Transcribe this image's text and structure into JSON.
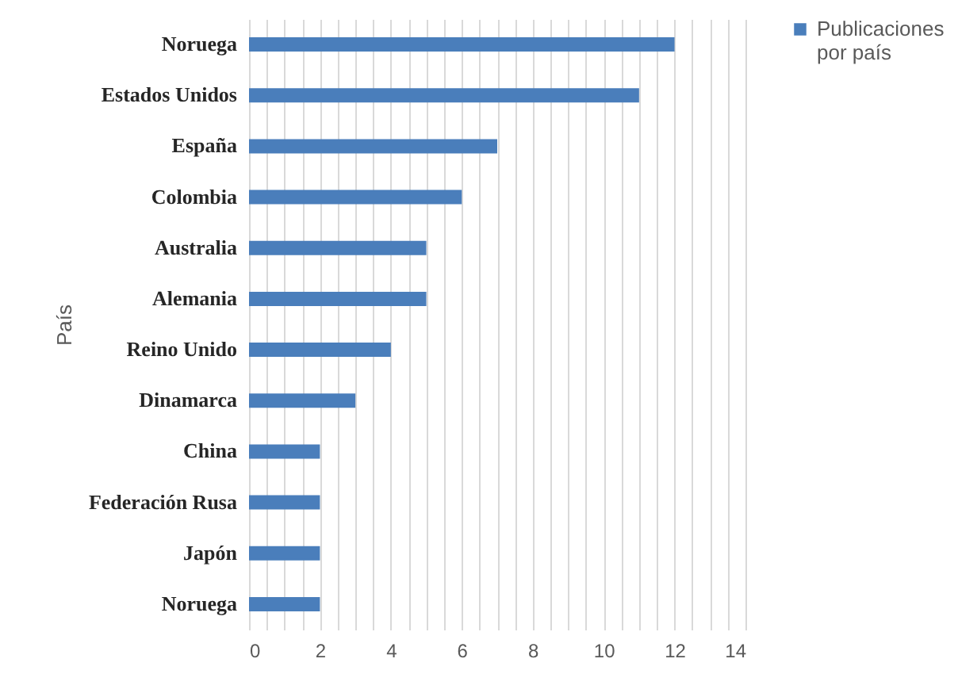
{
  "chart_data": {
    "type": "bar",
    "orientation": "horizontal",
    "ylabel": "País",
    "categories": [
      "Noruega",
      "Estados Unidos",
      "España",
      "Colombia",
      "Australia",
      "Alemania",
      "Reino Unido",
      "Dinamarca",
      "China",
      "Federación Rusa",
      "Japón",
      "Noruega"
    ],
    "series": [
      {
        "name": "Publicaciones por país",
        "color": "#4a7ebb",
        "values": [
          12,
          11,
          7,
          6,
          5,
          5,
          4,
          3,
          2,
          2,
          2,
          2
        ]
      }
    ],
    "xlim": [
      0,
      14
    ],
    "xticks": [
      0,
      {
        "value": 0.5,
        "label": null
      },
      {
        "value": 1,
        "label": null
      },
      {
        "value": 1.5,
        "label": null
      },
      2,
      {
        "value": 2.5,
        "label": null
      },
      {
        "value": 3,
        "label": null
      },
      {
        "value": 3.5,
        "label": null
      },
      4,
      {
        "value": 4.5,
        "label": null
      },
      {
        "value": 5,
        "label": null
      },
      {
        "value": 5.5,
        "label": null
      },
      6,
      {
        "value": 6.5,
        "label": null
      },
      {
        "value": 7,
        "label": null
      },
      {
        "value": 7.5,
        "label": null
      },
      8,
      {
        "value": 8.5,
        "label": null
      },
      {
        "value": 9,
        "label": null
      },
      {
        "value": 9.5,
        "label": null
      },
      10,
      {
        "value": 10.5,
        "label": null
      },
      {
        "value": 11,
        "label": null
      },
      {
        "value": 11.5,
        "label": null
      },
      12,
      {
        "value": 12.5,
        "label": null
      },
      {
        "value": 13,
        "label": null
      },
      {
        "value": 13.5,
        "label": null
      },
      14
    ],
    "grid": "x",
    "legend": "right"
  }
}
